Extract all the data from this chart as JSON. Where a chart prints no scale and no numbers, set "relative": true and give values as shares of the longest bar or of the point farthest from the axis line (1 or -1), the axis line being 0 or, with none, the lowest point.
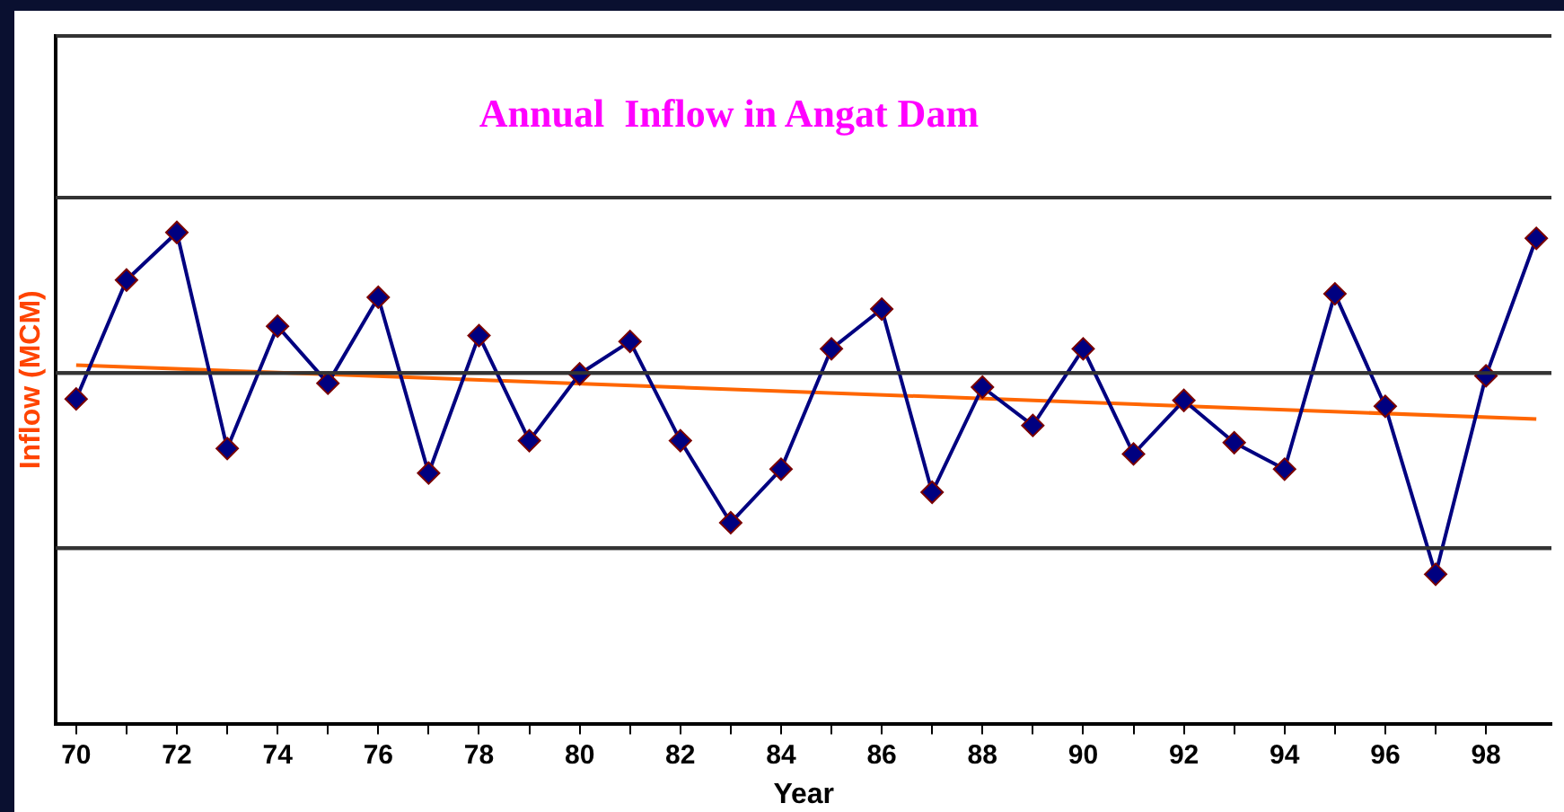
{
  "chart_data": {
    "type": "line",
    "title": "Annual  Inflow in Angat Dam",
    "xlabel": "Year",
    "ylabel": "Inflow (MCM)",
    "relative": true,
    "x": [
      70,
      71,
      72,
      73,
      74,
      75,
      76,
      77,
      78,
      79,
      80,
      81,
      82,
      83,
      84,
      85,
      86,
      87,
      88,
      89,
      90,
      91,
      92,
      93,
      94,
      95,
      96,
      97,
      98,
      99
    ],
    "xlim": [
      69.6,
      99.3
    ],
    "xticks": [
      70,
      {
        "value": 71,
        "label": null
      },
      72,
      {
        "value": 73,
        "label": null
      },
      74,
      {
        "value": 75,
        "label": null
      },
      76,
      {
        "value": 77,
        "label": null
      },
      78,
      {
        "value": 79,
        "label": null
      },
      80,
      {
        "value": 81,
        "label": null
      },
      82,
      {
        "value": 83,
        "label": null
      },
      84,
      {
        "value": 85,
        "label": null
      },
      86,
      {
        "value": 87,
        "label": null
      },
      88,
      {
        "value": 89,
        "label": null
      },
      90,
      {
        "value": 91,
        "label": null
      },
      92,
      {
        "value": 93,
        "label": null
      },
      94,
      {
        "value": 95,
        "label": null
      },
      96,
      {
        "value": 97,
        "label": null
      },
      98
    ],
    "series": [
      {
        "color": "#000080",
        "marker": "diamond",
        "values": [
          0.661,
          0.903,
          1,
          0.56,
          0.809,
          0.693,
          0.868,
          0.51,
          0.79,
          0.576,
          0.712,
          0.778,
          0.576,
          0.409,
          0.518,
          0.763,
          0.844,
          0.471,
          0.685,
          0.607,
          0.763,
          0.549,
          0.658,
          0.572,
          0.518,
          0.875,
          0.646,
          0.304,
          0.708,
          0.988
        ]
      },
      {
        "type": "line",
        "color": "#ff6600",
        "marker": "none",
        "x": [
          70,
          99
        ],
        "values": [
          0.73,
          0.62
        ]
      }
    ],
    "ref_lines": [
      {
        "axis": "y",
        "value": 0.357,
        "color": "#333333"
      },
      {
        "axis": "y",
        "value": 0.714,
        "color": "#333333"
      },
      {
        "axis": "y",
        "value": 1.071,
        "color": "#333333"
      }
    ],
    "legend": false,
    "line_style": "solid"
  }
}
